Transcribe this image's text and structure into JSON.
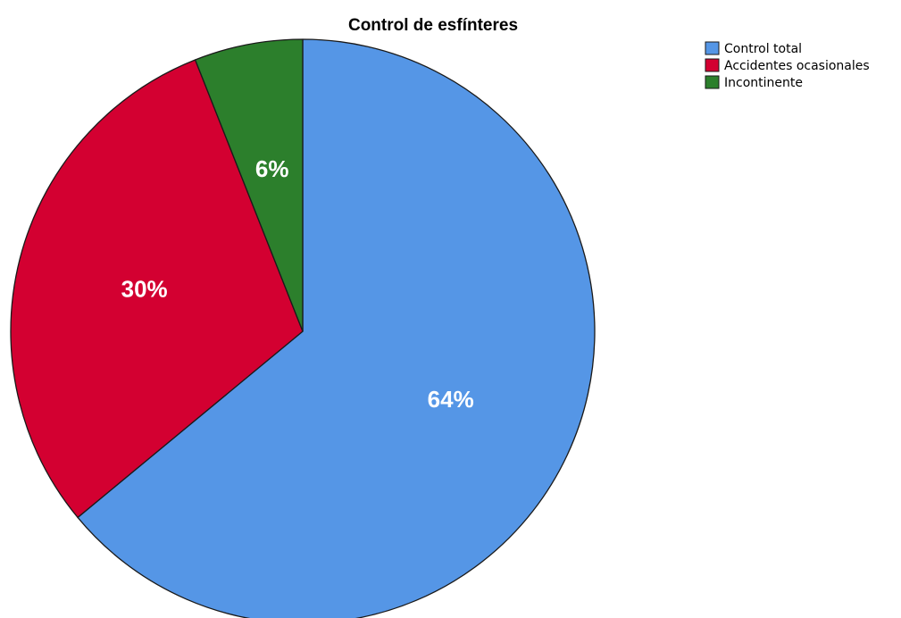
{
  "chart_data": {
    "type": "pie",
    "title": "Control de esfínteres",
    "categories": [
      "Control total",
      "Accidentes ocasionales",
      "Incontinente"
    ],
    "values": [
      64,
      30,
      6
    ],
    "data_labels": [
      "64%",
      "30%",
      "6%"
    ],
    "colors": [
      "#5596e6",
      "#d30031",
      "#2c7f2c"
    ],
    "legend": {
      "placement": "top-right",
      "entries": [
        "Control total",
        "Accidentes ocasionales",
        "Incontinente"
      ]
    }
  }
}
